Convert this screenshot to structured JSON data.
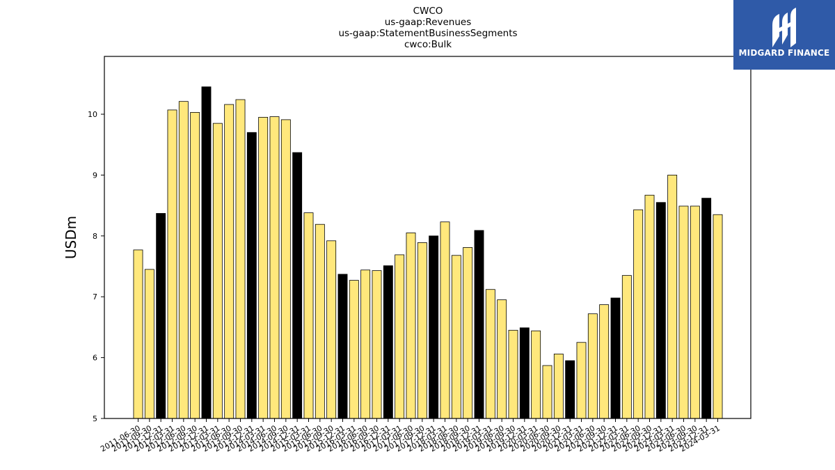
{
  "brand": {
    "name": "MIDGARD FINANCE",
    "color": "#2f5aa8"
  },
  "colors": {
    "normal": "#ffe87c",
    "highlight": "#000000"
  },
  "chart_data": {
    "type": "bar",
    "title_lines": [
      "CWCO",
      "us-gaap:Revenues",
      "us-gaap:StatementBusinessSegments",
      "cwco:Bulk"
    ],
    "xlabel": "",
    "ylabel": "USDm",
    "ylim": [
      5,
      10.95
    ],
    "yticks": [
      5,
      6,
      7,
      8,
      9,
      10
    ],
    "grid": false,
    "categories": [
      "2011-06-30",
      "2011-09-30",
      "2011-12-31",
      "2012-03-31",
      "2012-06-30",
      "2012-09-30",
      "2012-12-31",
      "2013-03-31",
      "2013-06-30",
      "2013-09-30",
      "2013-12-31",
      "2014-03-31",
      "2014-06-30",
      "2014-09-30",
      "2014-12-31",
      "2015-03-31",
      "2015-06-30",
      "2015-09-30",
      "2015-12-31",
      "2016-03-31",
      "2016-06-30",
      "2016-09-30",
      "2016-12-31",
      "2017-03-31",
      "2017-06-30",
      "2017-09-30",
      "2017-12-31",
      "2018-03-31",
      "2018-06-30",
      "2018-09-30",
      "2018-12-31",
      "2019-03-31",
      "2019-06-30",
      "2019-09-30",
      "2019-12-31",
      "2020-03-31",
      "2020-06-30",
      "2020-09-30",
      "2020-12-31",
      "2021-03-31",
      "2021-06-30",
      "2021-09-30",
      "2021-12-31",
      "2022-03-31",
      "2022-06-30",
      "2022-09-30",
      "2022-12-31",
      "2023-03-31",
      "2023-06-30",
      "2023-09-30",
      "2023-12-31",
      "2024-03-31"
    ],
    "values": [
      7.77,
      7.45,
      8.37,
      10.07,
      10.21,
      10.03,
      10.45,
      9.85,
      10.16,
      10.24,
      9.7,
      9.95,
      9.96,
      9.91,
      9.37,
      8.38,
      8.19,
      7.92,
      7.37,
      7.27,
      7.44,
      7.43,
      7.51,
      7.69,
      8.05,
      7.89,
      8.0,
      8.23,
      7.68,
      7.81,
      8.09,
      7.12,
      6.95,
      6.45,
      6.49,
      6.44,
      5.87,
      6.06,
      5.95,
      6.25,
      6.72,
      6.87,
      6.98,
      7.35,
      8.43,
      8.67,
      8.55,
      9.0,
      8.49,
      8.49,
      8.62,
      8.35
    ],
    "highlight": [
      false,
      false,
      true,
      false,
      false,
      false,
      true,
      false,
      false,
      false,
      true,
      false,
      false,
      false,
      true,
      false,
      false,
      false,
      true,
      false,
      false,
      false,
      true,
      false,
      false,
      false,
      true,
      false,
      false,
      false,
      true,
      false,
      false,
      false,
      true,
      false,
      false,
      false,
      true,
      false,
      false,
      false,
      true,
      false,
      false,
      false,
      true,
      false,
      false,
      false,
      true,
      false
    ]
  }
}
